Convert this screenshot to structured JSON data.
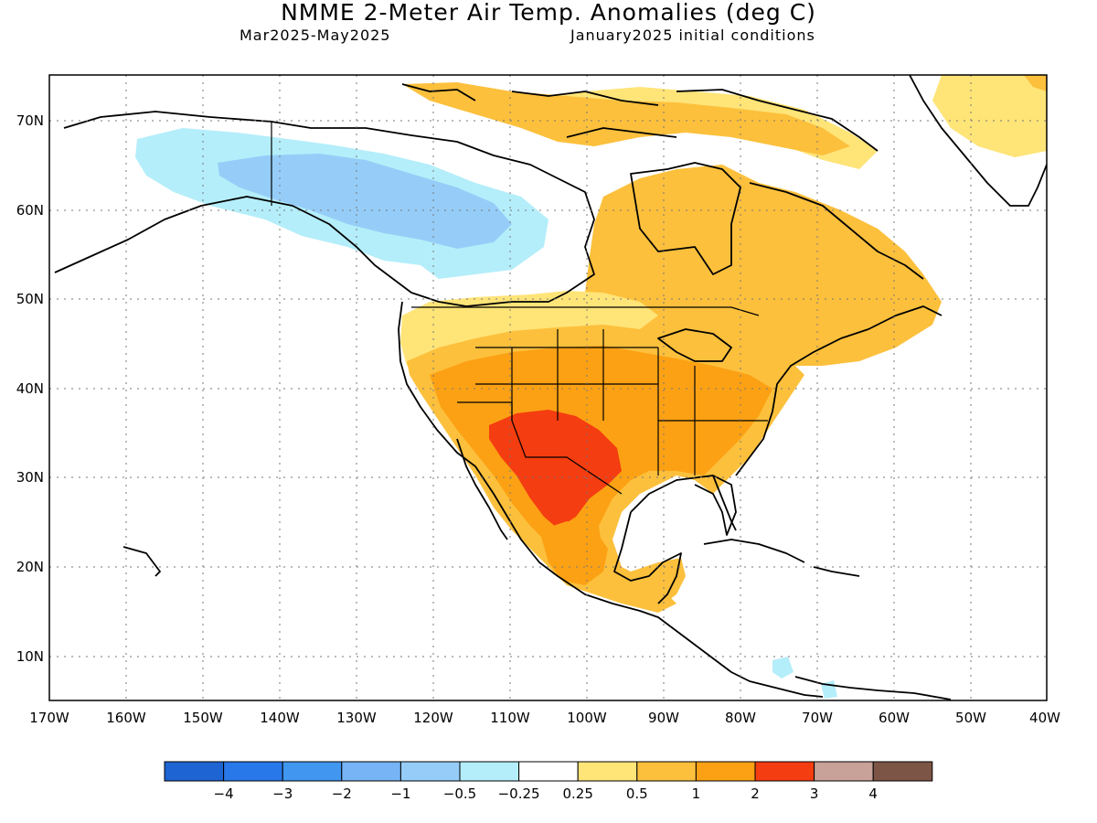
{
  "title": "NMME 2-Meter Air Temp. Anomalies (deg C)",
  "period": "Mar2025-May2025",
  "initial_conditions": "January2025 initial conditions",
  "lat_labels": [
    "70N",
    "60N",
    "50N",
    "40N",
    "30N",
    "20N",
    "10N"
  ],
  "lon_labels": [
    "170W",
    "160W",
    "150W",
    "140W",
    "130W",
    "120W",
    "110W",
    "100W",
    "90W",
    "80W",
    "70W",
    "60W",
    "50W",
    "40W"
  ],
  "colorbar": {
    "labels": [
      "−4",
      "−3",
      "−2",
      "−1",
      "−0.5",
      "−0.25",
      "0.25",
      "0.5",
      "1",
      "2",
      "3",
      "4"
    ],
    "colors": [
      "#1e64d2",
      "#2878ea",
      "#4196f0",
      "#76b4f5",
      "#96cdf8",
      "#b4eefa",
      "#ffffff",
      "#ffe478",
      "#fcc03c",
      "#fca114",
      "#f43d10",
      "#c8a198",
      "#7d5546"
    ]
  },
  "chart_data": {
    "type": "heatmap",
    "title": "NMME 2-Meter Air Temp. Anomalies (deg C)",
    "subtitle": "Mar2025-May2025",
    "lat_range": [
      5,
      75
    ],
    "lon_range": [
      -170,
      -40
    ],
    "units": "deg C",
    "grid": true,
    "regions": [
      {
        "anomaly_bin": "-1 to -0.5",
        "area": "Alaska / Yukon / western Northwest Territories"
      },
      {
        "anomaly_bin": "-0.5 to -0.25",
        "area": "Alaska, western Canada, Greenland coast"
      },
      {
        "anomaly_bin": "0.25 to 0.5",
        "area": "Canadian Arctic, eastern Greenland, Pacific Northwest edges"
      },
      {
        "anomaly_bin": "0.5 to 1",
        "area": "Eastern Canada, western and eastern US, Mexico"
      },
      {
        "anomaly_bin": "1 to 2",
        "area": "Central and southern US, northern Mexico"
      },
      {
        "anomaly_bin": "2 to 3",
        "area": "Southwestern US, Texas, northern Mexico"
      }
    ]
  }
}
